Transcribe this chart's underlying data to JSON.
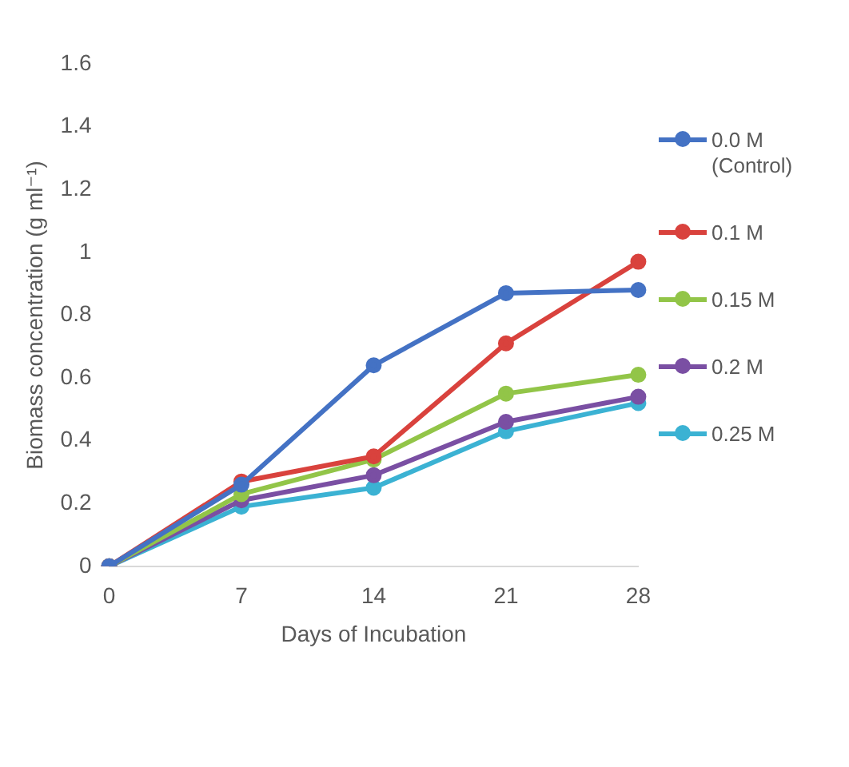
{
  "chart_data": {
    "type": "line",
    "xlabel": "Days of Incubation",
    "ylabel": "Biomass concentration (g ml⁻¹)",
    "categories": [
      "0",
      "7",
      "14",
      "21",
      "28"
    ],
    "series": [
      {
        "name": "0.0 M (Control)",
        "color": "#4472c4",
        "values": [
          0,
          0.26,
          0.64,
          0.87,
          0.88
        ]
      },
      {
        "name": "0.1 M",
        "color": "#d9423d",
        "values": [
          0,
          0.27,
          0.35,
          0.71,
          0.97
        ]
      },
      {
        "name": "0.15 M",
        "color": "#92c548",
        "values": [
          0,
          0.23,
          0.34,
          0.55,
          0.61
        ]
      },
      {
        "name": "0.2 M",
        "color": "#7a4fa3",
        "values": [
          0,
          0.21,
          0.29,
          0.46,
          0.54
        ]
      },
      {
        "name": "0.25 M",
        "color": "#3bb2d3",
        "values": [
          0,
          0.19,
          0.25,
          0.43,
          0.52
        ]
      }
    ],
    "ylim": [
      0,
      1.6
    ],
    "yticks": [
      0,
      0.2,
      0.4,
      0.6,
      0.8,
      1,
      1.2,
      1.4,
      1.6
    ],
    "grid": false,
    "legend": "right",
    "marker": "circle",
    "line_style": "solid"
  }
}
